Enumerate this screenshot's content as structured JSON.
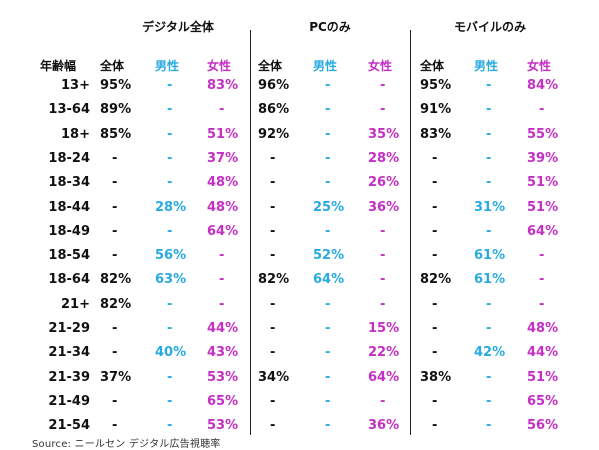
{
  "groups": [
    "デジタル全体",
    "PCのみ",
    "モバイルのみ"
  ],
  "row_header_label": "年齢幅",
  "column_headers": [
    "全体",
    "男性",
    "女性"
  ],
  "colors": {
    "total": "#111111",
    "male": "#29abe2",
    "female": "#c42fc4"
  },
  "rows": [
    {
      "label": "13+",
      "values": [
        "95%",
        "-",
        "83%",
        "96%",
        "-",
        "-",
        "95%",
        "-",
        "84%"
      ]
    },
    {
      "label": "13-64",
      "values": [
        "89%",
        "-",
        "-",
        "86%",
        "-",
        "-",
        "91%",
        "-",
        "-"
      ]
    },
    {
      "label": "18+",
      "values": [
        "85%",
        "-",
        "51%",
        "92%",
        "-",
        "35%",
        "83%",
        "-",
        "55%"
      ]
    },
    {
      "label": "18-24",
      "values": [
        "-",
        "-",
        "37%",
        "-",
        "-",
        "28%",
        "-",
        "-",
        "39%"
      ]
    },
    {
      "label": "18-34",
      "values": [
        "-",
        "-",
        "48%",
        "-",
        "-",
        "26%",
        "-",
        "-",
        "51%"
      ]
    },
    {
      "label": "18-44",
      "values": [
        "-",
        "28%",
        "48%",
        "-",
        "25%",
        "36%",
        "-",
        "31%",
        "51%"
      ]
    },
    {
      "label": "18-49",
      "values": [
        "-",
        "-",
        "64%",
        "-",
        "-",
        "-",
        "-",
        "-",
        "64%"
      ]
    },
    {
      "label": "18-54",
      "values": [
        "-",
        "56%",
        "-",
        "-",
        "52%",
        "-",
        "-",
        "61%",
        "-"
      ]
    },
    {
      "label": "18-64",
      "values": [
        "82%",
        "63%",
        "-",
        "82%",
        "64%",
        "-",
        "82%",
        "61%",
        "-"
      ]
    },
    {
      "label": "21+",
      "values": [
        "82%",
        "-",
        "-",
        "-",
        "-",
        "-",
        "-",
        "-",
        "-"
      ]
    },
    {
      "label": "21-29",
      "values": [
        "-",
        "-",
        "44%",
        "-",
        "-",
        "15%",
        "-",
        "-",
        "48%"
      ]
    },
    {
      "label": "21-34",
      "values": [
        "-",
        "40%",
        "43%",
        "-",
        "-",
        "22%",
        "-",
        "42%",
        "44%"
      ]
    },
    {
      "label": "21-39",
      "values": [
        "37%",
        "-",
        "53%",
        "34%",
        "-",
        "64%",
        "38%",
        "-",
        "51%"
      ]
    },
    {
      "label": "21-49",
      "values": [
        "-",
        "-",
        "65%",
        "-",
        "-",
        "-",
        "-",
        "-",
        "65%"
      ]
    },
    {
      "label": "21-54",
      "values": [
        "-",
        "-",
        "53%",
        "-",
        "-",
        "36%",
        "-",
        "-",
        "56%"
      ]
    }
  ],
  "source": "Source: ニールセン デジタル広告視聴率"
}
